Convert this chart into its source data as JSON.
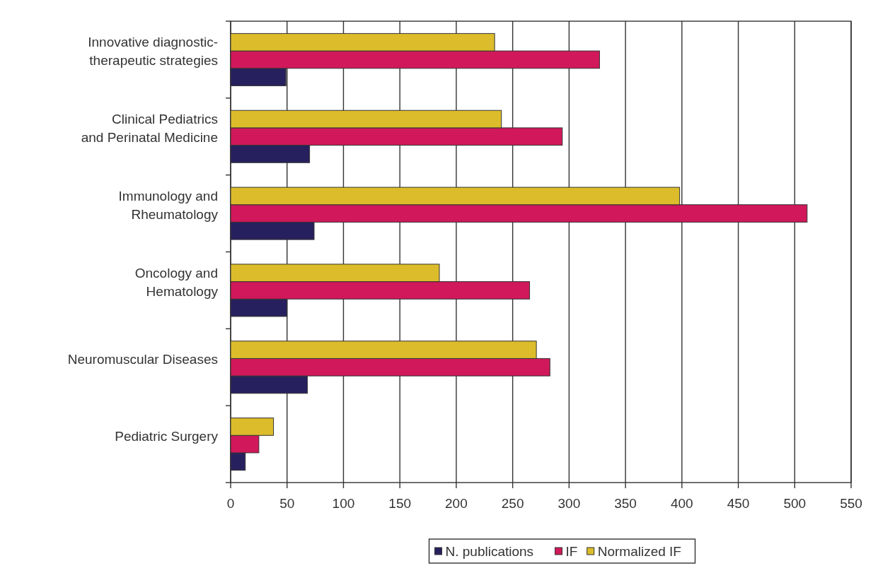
{
  "chart_data": {
    "type": "bar",
    "orientation": "horizontal",
    "categories": [
      "Innovative diagnostic-therapeutic strategies",
      "Clinical Pediatrics and Perinatal Medicine",
      "Immunology and Rheumatology",
      "Oncology and Hematology",
      "Neuromuscular Diseases",
      "Pediatric Surgery"
    ],
    "series": [
      {
        "name": "N. publications",
        "color": "#27205e",
        "values": [
          49,
          70,
          74,
          50,
          68,
          13
        ]
      },
      {
        "name": "IF",
        "color": "#d0185a",
        "values": [
          327,
          294,
          511,
          265,
          283,
          25
        ]
      },
      {
        "name": "Normalized IF",
        "color": "#dcbc2a",
        "values": [
          234,
          240,
          398,
          185,
          271,
          38
        ]
      }
    ],
    "xlim": [
      0,
      550
    ],
    "xticks": [
      0,
      50,
      100,
      150,
      200,
      250,
      300,
      350,
      400,
      450,
      500,
      550
    ],
    "grid": "x",
    "legend": "bottom"
  }
}
